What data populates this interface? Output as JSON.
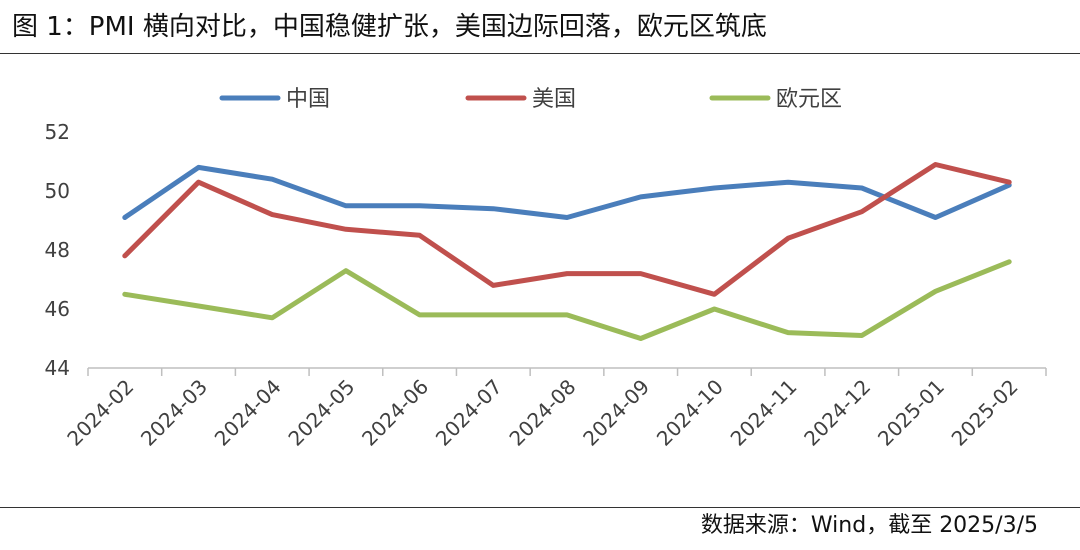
{
  "title": "图 1：PMI 横向对比，中国稳健扩张，美国边际回落，欧元区筑底",
  "source": "数据来源：Wind，截至 2025/3/5",
  "chart_data": {
    "type": "line",
    "categories": [
      "2024-02",
      "2024-03",
      "2024-04",
      "2024-05",
      "2024-06",
      "2024-07",
      "2024-08",
      "2024-09",
      "2024-10",
      "2024-11",
      "2024-12",
      "2025-01",
      "2025-02"
    ],
    "ylim": [
      44,
      52
    ],
    "yticks": [
      "44",
      "46",
      "48",
      "50",
      "52"
    ],
    "grid": false,
    "legend_position": "top",
    "series": [
      {
        "name": "中国",
        "color": "#4a7ebb",
        "values": [
          49.1,
          50.8,
          50.4,
          49.5,
          49.5,
          49.4,
          49.1,
          49.8,
          50.1,
          50.3,
          50.1,
          49.1,
          50.2
        ]
      },
      {
        "name": "美国",
        "color": "#c0504d",
        "values": [
          47.8,
          50.3,
          49.2,
          48.7,
          48.5,
          46.8,
          47.2,
          47.2,
          46.5,
          48.4,
          49.3,
          50.9,
          50.3
        ]
      },
      {
        "name": "欧元区",
        "color": "#9bbb59",
        "values": [
          46.5,
          46.1,
          45.7,
          47.3,
          45.8,
          45.8,
          45.8,
          45.0,
          46.0,
          45.2,
          45.1,
          46.6,
          47.6
        ]
      }
    ]
  }
}
